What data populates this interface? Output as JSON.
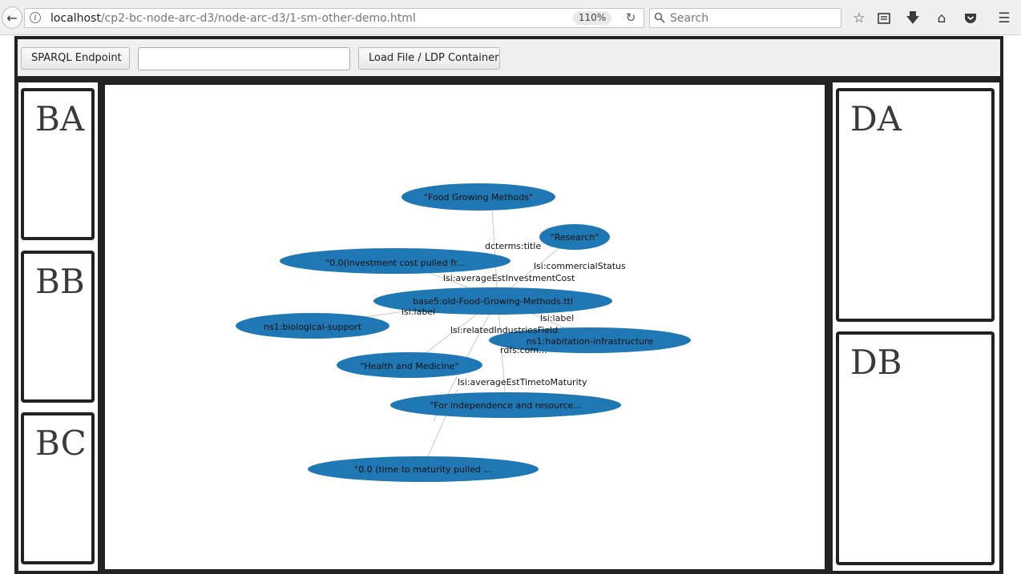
{
  "browser": {
    "url_host": "localhost",
    "url_path": "/cp2-bc-node-arc-d3/node-arc-d3/1-sm-other-demo.html",
    "zoom": "110%",
    "search_placeholder": "Search"
  },
  "toolbar": {
    "sparql_label": "SPARQL Endpoint",
    "endpoint_value": "",
    "load_label": "Load File / LDP Container"
  },
  "panels": {
    "ba": "BA",
    "bb": "BB",
    "bc": "BC",
    "da": "DA",
    "db": "DB"
  },
  "graph": {
    "nodes": {
      "food_growing": "\"Food Growing Methods\"",
      "research": "\"Research\"",
      "investment": "\"0.0(investment cost pulled fr...",
      "base": "base5:old-Food-Growing-Methods.ttl",
      "bio_support": "ns1:biological-support",
      "habitation": "ns1:habitation-infrastructure",
      "health": "\"Health and Medicine\"",
      "independence": "\"For independence and resource...",
      "maturity": "\"0.0 (time to maturity pulled ..."
    },
    "edges": {
      "title": "dcterms:title",
      "commercial": "lsi:commercialStatus",
      "avg_investment": "lsi:averageEstInvestmentCost",
      "label_left": "lsi:label",
      "label_right": "lsi:label",
      "related": "lsi:relatedIndustriesField",
      "rdfs": "rdfs:com...",
      "avg_time": "lsi:averageEstTimetoMaturity"
    }
  },
  "colors": {
    "node": "#1f77b4",
    "link": "#c8c8c8"
  }
}
